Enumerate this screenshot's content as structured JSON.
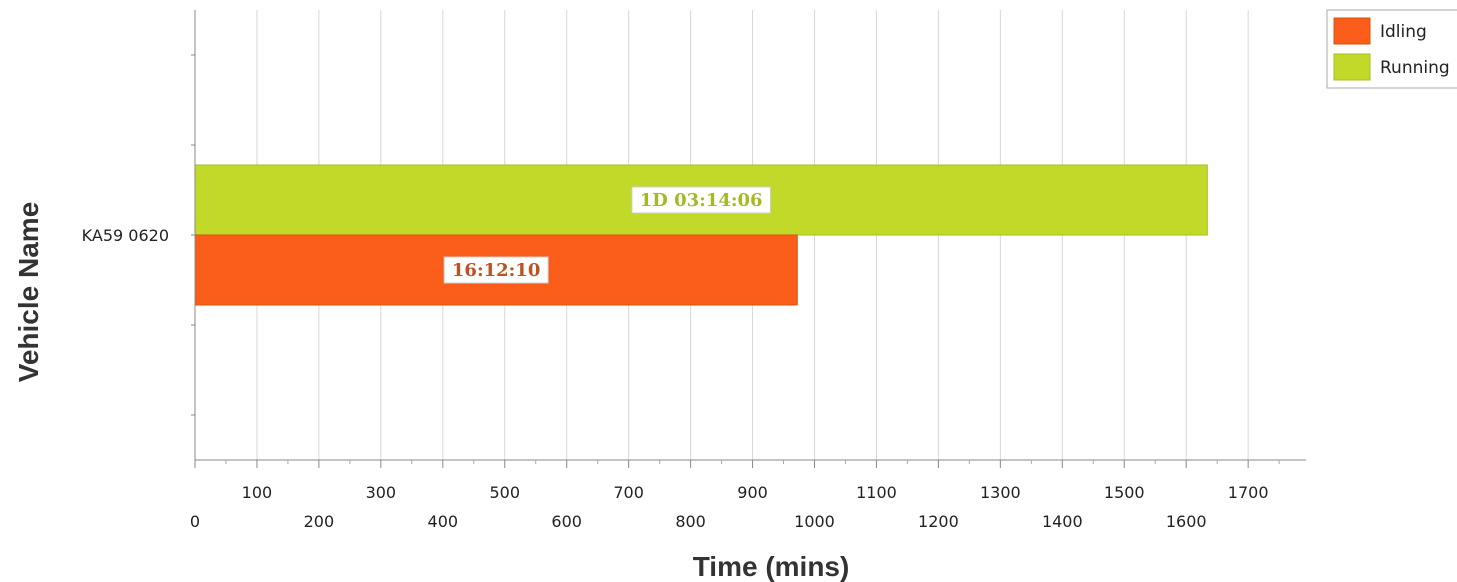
{
  "chart_data": {
    "type": "bar",
    "orientation": "horizontal",
    "categories": [
      "KA59 0620"
    ],
    "series": [
      {
        "name": "Idling",
        "values": [
          972.2
        ],
        "labels": [
          "16:12:10"
        ],
        "color": "#fa5c1a",
        "label_color": "#c0501c"
      },
      {
        "name": "Running",
        "values": [
          1634.1
        ],
        "labels": [
          "1D 03:14:06"
        ],
        "color": "#c3d92a",
        "label_color": "#a8b822"
      }
    ],
    "xlabel": "Time (mins)",
    "ylabel": "Vehicle Name",
    "xlim": [
      0,
      1800
    ],
    "xticks": [
      0,
      100,
      200,
      300,
      400,
      500,
      600,
      700,
      800,
      900,
      1000,
      1100,
      1200,
      1300,
      1400,
      1500,
      1600,
      1700
    ],
    "grid": true,
    "legend_position": "top-right"
  }
}
